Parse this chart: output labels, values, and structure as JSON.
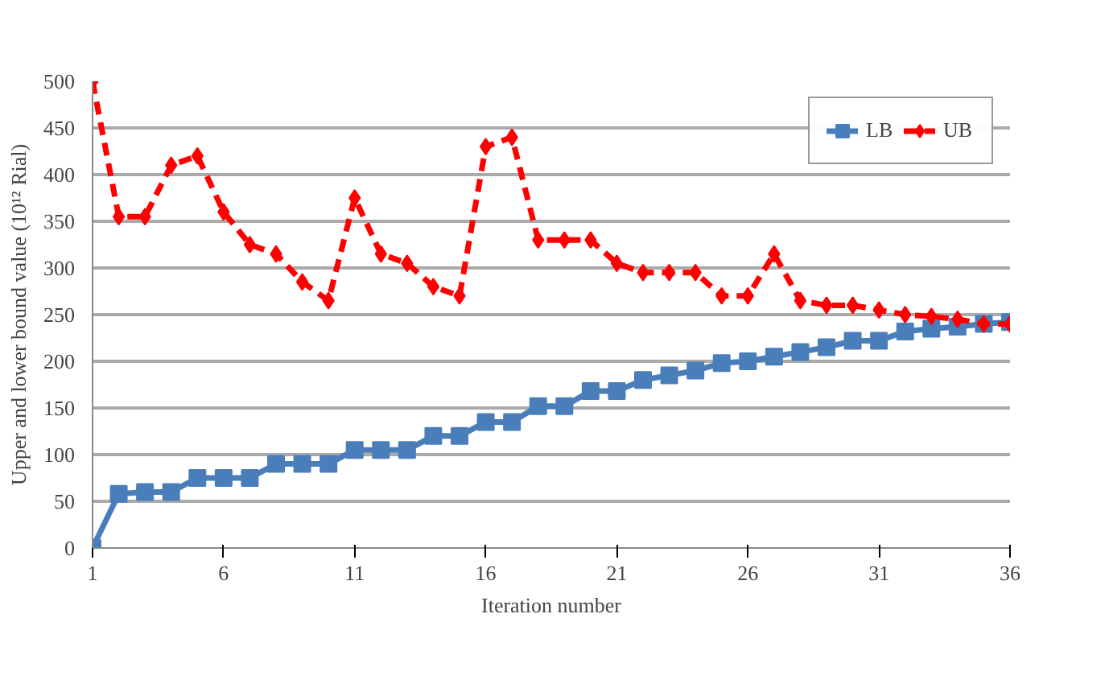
{
  "chart_data": {
    "type": "line",
    "xlabel": "Iteration number",
    "ylabel": "Upper and lower bound value (10¹² Rial)",
    "x": [
      1,
      2,
      3,
      4,
      5,
      6,
      7,
      8,
      9,
      10,
      11,
      12,
      13,
      14,
      15,
      16,
      17,
      18,
      19,
      20,
      21,
      22,
      23,
      24,
      25,
      26,
      27,
      28,
      29,
      30,
      31,
      32,
      33,
      34,
      35,
      36
    ],
    "xlim": [
      1,
      36
    ],
    "xticks": [
      1,
      6,
      11,
      16,
      21,
      26,
      31,
      36
    ],
    "ylim": [
      0,
      500
    ],
    "yticks": [
      0,
      50,
      100,
      150,
      200,
      250,
      300,
      350,
      400,
      450,
      500
    ],
    "grid": "y",
    "legend": "top right",
    "series": [
      {
        "name": "LB",
        "color": "#4a7ebb",
        "marker": "square",
        "line_style": "solid",
        "values": [
          0,
          58,
          60,
          60,
          75,
          75,
          75,
          90,
          90,
          90,
          105,
          105,
          105,
          120,
          120,
          135,
          135,
          152,
          152,
          168,
          168,
          180,
          185,
          190,
          198,
          200,
          205,
          210,
          215,
          222,
          222,
          232,
          235,
          237,
          240,
          242
        ]
      },
      {
        "name": "UB",
        "color": "#ff0000",
        "marker": "diamond",
        "line_style": "dashed",
        "values": [
          500,
          355,
          355,
          410,
          420,
          360,
          325,
          315,
          285,
          265,
          375,
          315,
          305,
          280,
          270,
          430,
          440,
          330,
          330,
          330,
          305,
          295,
          295,
          295,
          270,
          270,
          315,
          265,
          260,
          260,
          255,
          250,
          248,
          245,
          240,
          240
        ]
      }
    ]
  }
}
